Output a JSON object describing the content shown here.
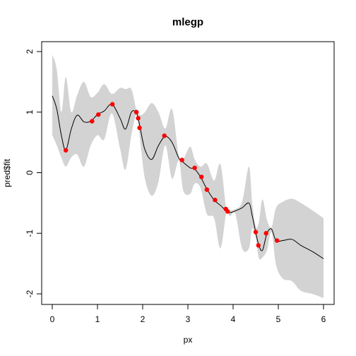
{
  "chart_data": {
    "type": "line",
    "title": "mlegp",
    "xlabel": "px",
    "ylabel": "pred$fit",
    "xlim": [
      0,
      6
    ],
    "ylim": [
      -2,
      2
    ],
    "xticks": [
      0,
      1,
      2,
      3,
      4,
      5,
      6
    ],
    "yticks": [
      -2,
      -1,
      0,
      1,
      2
    ],
    "xtick_labels": [
      "0",
      "1",
      "2",
      "3",
      "4",
      "5",
      "6"
    ],
    "ytick_labels": [
      "-2",
      "-1",
      "0",
      "1",
      "2"
    ],
    "grid": false,
    "legend": "none",
    "colors": {
      "band": "#d3d3d3",
      "line": "#000000",
      "points": "#ff0000"
    },
    "fit": {
      "x": [
        0,
        0.1,
        0.2,
        0.3,
        0.42,
        0.55,
        0.7,
        0.85,
        1.0,
        1.15,
        1.32,
        1.5,
        1.62,
        1.75,
        1.85,
        1.9,
        1.95,
        2.05,
        2.2,
        2.35,
        2.5,
        2.65,
        2.8,
        2.9,
        3.05,
        3.15,
        3.28,
        3.42,
        3.58,
        3.72,
        3.85,
        3.93,
        4.05,
        4.2,
        4.35,
        4.42,
        4.5,
        4.57,
        4.65,
        4.75,
        4.85,
        4.95,
        5.1,
        5.3,
        5.5,
        5.75,
        6.0
      ],
      "y": [
        1.27,
        1.05,
        0.62,
        0.37,
        0.72,
        0.95,
        0.84,
        0.85,
        0.96,
        1.02,
        1.13,
        0.9,
        0.72,
        1.0,
        1.0,
        0.9,
        0.72,
        0.38,
        0.22,
        0.45,
        0.6,
        0.5,
        0.24,
        0.17,
        0.08,
        0.06,
        -0.07,
        -0.27,
        -0.45,
        -0.54,
        -0.63,
        -0.66,
        -0.63,
        -0.58,
        -0.5,
        -0.7,
        -0.98,
        -1.2,
        -1.28,
        -1.0,
        -0.93,
        -1.12,
        -1.12,
        -1.1,
        -1.2,
        -1.3,
        -1.42
      ]
    },
    "band": {
      "upper": [
        1.95,
        1.7,
        1.0,
        1.58,
        1.0,
        1.28,
        1.5,
        1.25,
        1.32,
        1.46,
        1.3,
        1.4,
        1.38,
        1.38,
        1.07,
        1.03,
        0.95,
        1.0,
        1.15,
        1.0,
        0.73,
        1.05,
        0.27,
        0.23,
        0.43,
        0.22,
        0.1,
        0.15,
        -0.13,
        0.14,
        -0.6,
        -0.62,
        -0.6,
        -0.48,
        0.1,
        -0.48,
        -0.89,
        -0.82,
        -0.44,
        -0.78,
        -0.9,
        -0.58,
        -0.48,
        -0.43,
        -0.5,
        -0.62,
        -0.75
      ],
      "lower": [
        0.62,
        0.45,
        0.25,
        0.1,
        0.25,
        0.3,
        0.1,
        0.45,
        0.62,
        0.55,
        0.98,
        0.4,
        0.05,
        0.62,
        0.95,
        0.82,
        0.5,
        -0.1,
        -0.38,
        -0.15,
        0.45,
        -0.1,
        0.2,
        -0.3,
        -0.35,
        -0.18,
        -0.25,
        -0.68,
        -0.75,
        -1.25,
        -0.66,
        -0.72,
        -0.68,
        -1.25,
        -1.25,
        -0.92,
        -1.08,
        -1.41,
        -1.4,
        -1.28,
        -0.98,
        -1.52,
        -1.75,
        -1.79,
        -1.95,
        -2.0,
        -2.07
      ]
    },
    "points": {
      "x": [
        0.3,
        0.88,
        1.02,
        1.33,
        1.86,
        1.9,
        1.93,
        2.48,
        2.87,
        3.15,
        3.3,
        3.42,
        3.6,
        3.84,
        3.88,
        4.5,
        4.56,
        4.73,
        4.97
      ],
      "y": [
        0.37,
        0.85,
        0.96,
        1.13,
        1.0,
        0.9,
        0.74,
        0.61,
        0.21,
        0.08,
        -0.07,
        -0.28,
        -0.45,
        -0.6,
        -0.64,
        -0.98,
        -1.2,
        -1.0,
        -1.12
      ]
    }
  }
}
